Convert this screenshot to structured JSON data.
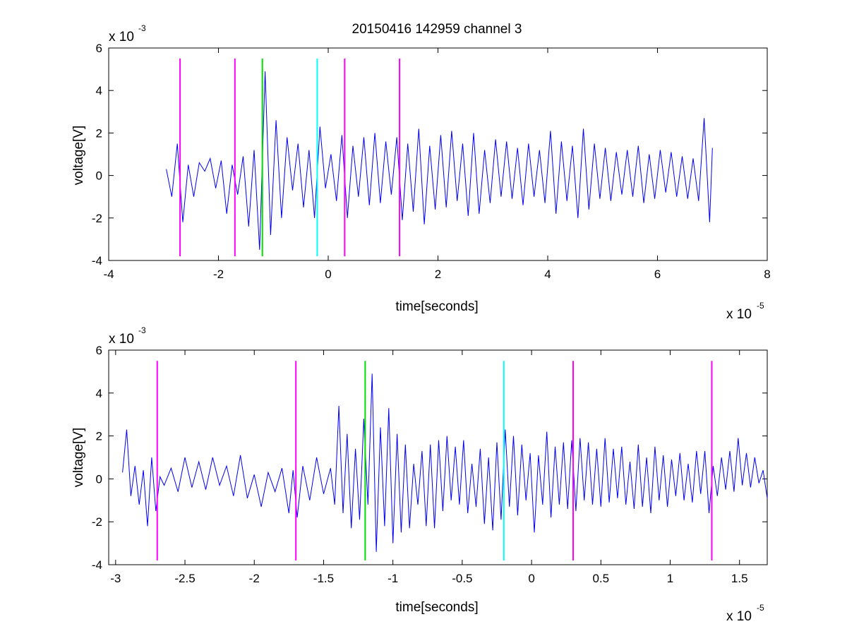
{
  "title": "20150416 142959 channel 3",
  "colors": {
    "signal": "#0000ee",
    "markers": "#ff00ff",
    "green_marker": "#00dd00",
    "cyan_marker": "#00ffff"
  },
  "chart_data": [
    {
      "type": "line",
      "title": "20150416 142959 channel 3",
      "xlabel": "time[seconds]",
      "ylabel": "voltage[V]",
      "x_exponent_label": "x 10",
      "x_exponent_power": "-5",
      "y_exponent_label": "x 10",
      "y_exponent_power": "-3",
      "xlim": [
        -4,
        8
      ],
      "ylim": [
        -4,
        6
      ],
      "x_ticks": [
        -4,
        -2,
        0,
        2,
        4,
        6,
        8
      ],
      "x_tick_labels": [
        "-4",
        "-2",
        "0",
        "2",
        "4",
        "6",
        "8"
      ],
      "y_ticks": [
        -4,
        -2,
        0,
        2,
        4,
        6
      ],
      "y_tick_labels": [
        "-4",
        "-2",
        "0",
        "2",
        "4",
        "6"
      ],
      "grid": false,
      "series": [
        {
          "x": [
            -2.95,
            -2.85,
            -2.75,
            -2.65,
            -2.55,
            -2.45,
            -2.35,
            -2.25,
            -2.15,
            -2.05,
            -1.95,
            -1.85,
            -1.75,
            -1.65,
            -1.55,
            -1.45,
            -1.35,
            -1.25,
            -1.15,
            -1.05,
            -0.95,
            -0.85,
            -0.75,
            -0.65,
            -0.55,
            -0.45,
            -0.35,
            -0.25,
            -0.15,
            -0.05,
            0.05,
            0.15,
            0.25,
            0.35,
            0.45,
            0.55,
            0.65,
            0.75,
            0.85,
            0.95,
            1.05,
            1.15,
            1.25,
            1.35,
            1.45,
            1.55,
            1.65,
            1.75,
            1.85,
            1.95,
            2.05,
            2.15,
            2.25,
            2.35,
            2.45,
            2.55,
            2.65,
            2.75,
            2.85,
            2.95,
            3.05,
            3.15,
            3.25,
            3.35,
            3.45,
            3.55,
            3.65,
            3.75,
            3.85,
            3.95,
            4.05,
            4.15,
            4.25,
            4.35,
            4.45,
            4.55,
            4.65,
            4.75,
            4.85,
            4.95,
            5.05,
            5.15,
            5.25,
            5.35,
            5.45,
            5.55,
            5.65,
            5.75,
            5.85,
            5.95,
            6.05,
            6.15,
            6.25,
            6.35,
            6.45,
            6.55,
            6.65,
            6.75,
            6.85,
            6.95,
            7.0
          ],
          "y": [
            0.3,
            -1.0,
            1.5,
            -2.2,
            0.5,
            -1.0,
            0.6,
            0.2,
            0.8,
            -0.6,
            0.7,
            -1.8,
            0.5,
            -0.9,
            0.9,
            -2.4,
            1.2,
            -3.5,
            4.9,
            -2.8,
            2.6,
            -2.0,
            1.8,
            -0.7,
            1.5,
            -1.5,
            1.2,
            -2.0,
            2.3,
            -0.6,
            1.0,
            -1.2,
            1.9,
            -2.0,
            1.4,
            -1.0,
            1.8,
            -1.4,
            2.0,
            -1.3,
            1.6,
            -0.9,
            1.8,
            -2.1,
            1.5,
            -1.7,
            2.2,
            -2.3,
            1.4,
            -1.6,
            1.9,
            -1.5,
            2.1,
            -1.2,
            1.5,
            -1.9,
            2.0,
            -1.8,
            1.2,
            -1.3,
            1.7,
            -1.0,
            1.6,
            -1.1,
            1.3,
            -1.4,
            1.5,
            -1.0,
            1.2,
            -1.3,
            2.1,
            -1.8,
            1.6,
            -1.2,
            1.4,
            -2.0,
            2.2,
            -1.6,
            1.5,
            -1.1,
            1.3,
            -1.2,
            1.1,
            -0.9,
            1.2,
            -1.0,
            1.4,
            -1.3,
            1.0,
            -1.1,
            1.2,
            -0.8,
            1.1,
            -1.0,
            0.9,
            -1.1,
            0.8,
            -1.2,
            2.7,
            -2.2,
            1.3
          ]
        }
      ],
      "markers": [
        {
          "x": -2.7,
          "color": "#ff00ff"
        },
        {
          "x": -1.7,
          "color": "#ff00ff"
        },
        {
          "x": -1.2,
          "color": "#00dd00"
        },
        {
          "x": -0.2,
          "color": "#00ffff"
        },
        {
          "x": 0.3,
          "color": "#ff00ff"
        },
        {
          "x": 1.3,
          "color": "#ff00ff"
        }
      ],
      "marker_range": [
        -3.8,
        5.5
      ]
    },
    {
      "type": "line",
      "title": "",
      "xlabel": "time[seconds]",
      "ylabel": "voltage[V]",
      "x_exponent_label": "x 10",
      "x_exponent_power": "-5",
      "y_exponent_label": "x 10",
      "y_exponent_power": "-3",
      "xlim": [
        -3.05,
        1.7
      ],
      "ylim": [
        -4,
        6
      ],
      "x_ticks": [
        -3,
        -2.5,
        -2,
        -1.5,
        -1,
        -0.5,
        0,
        0.5,
        1,
        1.5
      ],
      "x_tick_labels": [
        "-3",
        "-2.5",
        "-2",
        "-1.5",
        "-1",
        "-0.5",
        "0",
        "0.5",
        "1",
        "1.5"
      ],
      "y_ticks": [
        -4,
        -2,
        0,
        2,
        4,
        6
      ],
      "y_tick_labels": [
        "-4",
        "-2",
        "0",
        "2",
        "4",
        "6"
      ],
      "grid": false,
      "series": [
        {
          "x": [
            -2.95,
            -2.92,
            -2.89,
            -2.86,
            -2.83,
            -2.8,
            -2.77,
            -2.74,
            -2.71,
            -2.68,
            -2.65,
            -2.6,
            -2.55,
            -2.5,
            -2.45,
            -2.4,
            -2.35,
            -2.3,
            -2.25,
            -2.2,
            -2.15,
            -2.1,
            -2.05,
            -2.0,
            -1.95,
            -1.9,
            -1.85,
            -1.8,
            -1.75,
            -1.72,
            -1.69,
            -1.65,
            -1.6,
            -1.55,
            -1.5,
            -1.45,
            -1.42,
            -1.39,
            -1.36,
            -1.33,
            -1.3,
            -1.27,
            -1.24,
            -1.21,
            -1.18,
            -1.15,
            -1.12,
            -1.09,
            -1.06,
            -1.03,
            -1.0,
            -0.97,
            -0.94,
            -0.91,
            -0.88,
            -0.85,
            -0.82,
            -0.79,
            -0.76,
            -0.73,
            -0.7,
            -0.67,
            -0.64,
            -0.61,
            -0.58,
            -0.55,
            -0.52,
            -0.49,
            -0.46,
            -0.43,
            -0.4,
            -0.37,
            -0.34,
            -0.31,
            -0.28,
            -0.25,
            -0.22,
            -0.19,
            -0.16,
            -0.13,
            -0.1,
            -0.07,
            -0.04,
            -0.01,
            0.02,
            0.05,
            0.08,
            0.11,
            0.14,
            0.17,
            0.2,
            0.23,
            0.26,
            0.29,
            0.32,
            0.35,
            0.38,
            0.41,
            0.44,
            0.47,
            0.5,
            0.53,
            0.56,
            0.59,
            0.62,
            0.65,
            0.68,
            0.71,
            0.74,
            0.77,
            0.8,
            0.83,
            0.86,
            0.89,
            0.92,
            0.95,
            0.98,
            1.01,
            1.04,
            1.07,
            1.1,
            1.13,
            1.16,
            1.19,
            1.22,
            1.25,
            1.28,
            1.31,
            1.34,
            1.37,
            1.4,
            1.43,
            1.46,
            1.49,
            1.52,
            1.55,
            1.58,
            1.61,
            1.64,
            1.67,
            1.7
          ],
          "y": [
            0.3,
            2.3,
            -0.8,
            0.6,
            -1.2,
            0.4,
            -2.2,
            1.0,
            -1.5,
            0.1,
            -0.3,
            0.5,
            -0.6,
            1.0,
            -0.4,
            0.8,
            -0.5,
            1.0,
            -0.3,
            0.6,
            -0.8,
            1.1,
            -0.9,
            0.2,
            -1.3,
            0.3,
            -0.6,
            0.5,
            -1.6,
            0.4,
            -1.8,
            0.6,
            -1.0,
            1.0,
            -0.7,
            0.5,
            -1.2,
            3.4,
            -1.6,
            2.1,
            -2.3,
            1.4,
            -1.9,
            2.8,
            -1.2,
            4.9,
            -3.4,
            2.4,
            -2.2,
            3.3,
            -3.0,
            2.1,
            -2.5,
            1.6,
            -2.3,
            0.7,
            -1.2,
            1.3,
            -2.2,
            1.6,
            -2.3,
            1.8,
            -1.5,
            2.0,
            -1.0,
            1.5,
            -1.2,
            1.8,
            -1.6,
            0.7,
            -1.3,
            1.4,
            -2.1,
            1.0,
            -2.4,
            1.7,
            -1.9,
            2.3,
            -1.3,
            2.0,
            -1.7,
            1.6,
            -1.0,
            1.2,
            -2.5,
            1.1,
            -1.2,
            2.2,
            -1.8,
            1.5,
            -1.2,
            1.7,
            -1.4,
            1.8,
            -1.5,
            1.9,
            -1.0,
            1.7,
            -1.2,
            1.4,
            -1.3,
            1.9,
            -1.1,
            1.4,
            -0.9,
            1.5,
            -1.2,
            0.8,
            -1.4,
            1.6,
            -1.3,
            1.0,
            -1.6,
            1.5,
            -1.0,
            1.1,
            -1.3,
            0.9,
            -0.8,
            1.2,
            -1.0,
            0.7,
            -1.1,
            1.3,
            -0.7,
            1.3,
            -1.6,
            0.6,
            -0.8,
            1.0,
            -0.5,
            1.3,
            -0.6,
            1.9,
            -0.3,
            1.2,
            -0.4,
            1.0,
            -0.2,
            0.4,
            -0.9
          ]
        }
      ],
      "markers": [
        {
          "x": -2.7,
          "color": "#ff00ff"
        },
        {
          "x": -1.7,
          "color": "#ff00ff"
        },
        {
          "x": -1.2,
          "color": "#00dd00"
        },
        {
          "x": -0.2,
          "color": "#00ffff"
        },
        {
          "x": 0.3,
          "color": "#ff00ff"
        },
        {
          "x": 1.3,
          "color": "#ff00ff"
        }
      ],
      "marker_range": [
        -3.8,
        5.5
      ]
    }
  ]
}
